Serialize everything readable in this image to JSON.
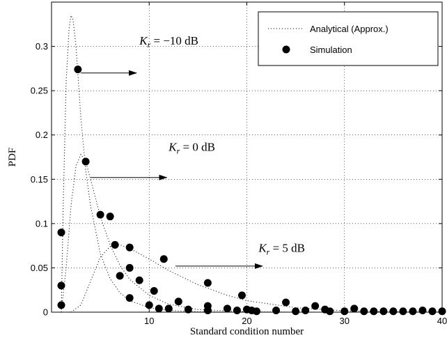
{
  "chart_data": {
    "type": "line",
    "title": "",
    "xlabel": "Standard condition number",
    "ylabel": "PDF",
    "xlim": [
      0,
      40
    ],
    "ylim": [
      0,
      0.35
    ],
    "xticks": [
      10,
      20,
      30,
      40
    ],
    "yticks": [
      0,
      0.05,
      0.1,
      0.15,
      0.2,
      0.25,
      0.3
    ],
    "grid": true,
    "legend": {
      "position": "top-right",
      "entries": [
        {
          "label": "Analytical (Approx.)",
          "style": "dotted-line"
        },
        {
          "label": "Simulation",
          "style": "filled-circle"
        }
      ]
    },
    "series": [
      {
        "name": "Analytical (Approx.)",
        "condition": "K_r = -10 dB",
        "x": [
          1.0,
          1.2,
          1.5,
          1.8,
          2.0,
          2.2,
          2.5,
          3.0,
          3.5,
          4.0,
          5.0,
          6.0,
          7.0,
          8.0,
          10.0,
          12.0,
          15.0,
          20.0
        ],
        "y": [
          0.0,
          0.12,
          0.26,
          0.32,
          0.335,
          0.33,
          0.3,
          0.22,
          0.16,
          0.12,
          0.066,
          0.038,
          0.022,
          0.013,
          0.005,
          0.002,
          0.0005,
          0.0
        ]
      },
      {
        "name": "Analytical (Approx.)",
        "condition": "K_r = 0 dB",
        "x": [
          1.0,
          1.5,
          2.0,
          2.5,
          3.0,
          3.5,
          4.0,
          5.0,
          6.0,
          7.0,
          8.0,
          10.0,
          12.0,
          15.0,
          20.0,
          25.0
        ],
        "y": [
          0.0,
          0.05,
          0.12,
          0.165,
          0.178,
          0.17,
          0.15,
          0.108,
          0.076,
          0.053,
          0.037,
          0.019,
          0.009,
          0.003,
          0.0005,
          0.0
        ]
      },
      {
        "name": "Analytical (Approx.)",
        "condition": "K_r = 5 dB",
        "x": [
          2.0,
          3.0,
          4.0,
          5.0,
          6.0,
          7.0,
          8.0,
          10.0,
          12.0,
          15.0,
          18.0,
          20.0,
          25.0,
          30.0,
          35.0,
          40.0
        ],
        "y": [
          0.0,
          0.008,
          0.035,
          0.062,
          0.074,
          0.076,
          0.072,
          0.06,
          0.047,
          0.031,
          0.019,
          0.013,
          0.005,
          0.0015,
          0.0004,
          0.0
        ]
      },
      {
        "name": "Simulation",
        "type": "scatter",
        "x": [
          1.0,
          1.0,
          1.0,
          2.7,
          3.5,
          5.0,
          6.0,
          6.5,
          7.0,
          8.0,
          8.0,
          8.0,
          9.0,
          10.0,
          10.5,
          11.0,
          11.5,
          12.0,
          13.0,
          14.0,
          16.0,
          16.0,
          16.0,
          18.0,
          19.0,
          19.5,
          20.0,
          20.5,
          21.0,
          23.0,
          24.0,
          25.0,
          26.0,
          27.0,
          28.0,
          28.5,
          30.0,
          31.0,
          32.0,
          33.0,
          34.0,
          35.0,
          36.0,
          37.0,
          38.0,
          39.0,
          40.0
        ],
        "y": [
          0.09,
          0.03,
          0.008,
          0.274,
          0.17,
          0.11,
          0.108,
          0.076,
          0.041,
          0.073,
          0.05,
          0.016,
          0.036,
          0.008,
          0.024,
          0.004,
          0.06,
          0.004,
          0.012,
          0.003,
          0.033,
          0.007,
          0.002,
          0.004,
          0.002,
          0.019,
          0.003,
          0.002,
          0.001,
          0.002,
          0.011,
          0.001,
          0.002,
          0.007,
          0.003,
          0.001,
          0.001,
          0.004,
          0.001,
          0.001,
          0.001,
          0.001,
          0.001,
          0.001,
          0.002,
          0.001,
          0.001
        ]
      }
    ],
    "annotations": [
      {
        "text": "K_r = -10 dB",
        "arrow_from": [
          3.0,
          0.27
        ],
        "arrow_to": [
          8.7,
          0.27
        ],
        "text_at": [
          9.0,
          0.302
        ]
      },
      {
        "text": "K_r = 0 dB",
        "arrow_from": [
          4.0,
          0.152
        ],
        "arrow_to": [
          11.8,
          0.152
        ],
        "text_at": [
          12.0,
          0.182
        ]
      },
      {
        "text": "K_r = 5 dB",
        "arrow_from": [
          12.7,
          0.052
        ],
        "arrow_to": [
          21.6,
          0.052
        ],
        "text_at": [
          21.2,
          0.068
        ]
      }
    ]
  }
}
